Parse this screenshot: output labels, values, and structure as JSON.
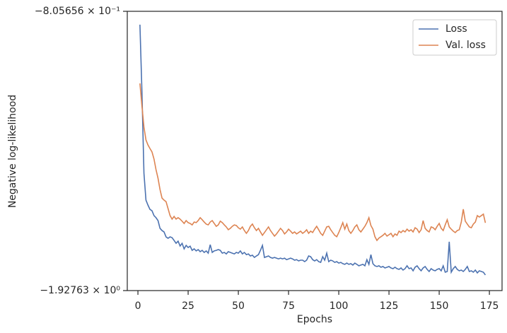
{
  "chart_data": {
    "type": "line",
    "xlabel": "Epochs",
    "ylabel": "Negative log-likelihood",
    "yscale": "log",
    "xlim": [
      -5.3,
      181.3
    ],
    "xticks": [
      0,
      25,
      50,
      75,
      100,
      125,
      150,
      175
    ],
    "ylim": [
      -1.92763,
      -0.805656
    ],
    "yticks": [
      {
        "value": -1.92763,
        "label": "−1.92763 × 10⁰"
      },
      {
        "value": -0.805656,
        "label": "−8.05656 × 10⁻¹"
      }
    ],
    "legend": "upper right",
    "x": [
      1,
      2,
      3,
      4,
      5,
      6,
      7,
      8,
      9,
      10,
      11,
      12,
      13,
      14,
      15,
      16,
      17,
      18,
      19,
      20,
      21,
      22,
      23,
      24,
      25,
      26,
      27,
      28,
      29,
      30,
      31,
      32,
      33,
      34,
      35,
      36,
      37,
      38,
      39,
      40,
      41,
      42,
      43,
      44,
      45,
      46,
      47,
      48,
      49,
      50,
      51,
      52,
      53,
      54,
      55,
      56,
      57,
      58,
      59,
      60,
      61,
      62,
      63,
      64,
      65,
      66,
      67,
      68,
      69,
      70,
      71,
      72,
      73,
      74,
      75,
      76,
      77,
      78,
      79,
      80,
      81,
      82,
      83,
      84,
      85,
      86,
      87,
      88,
      89,
      90,
      91,
      92,
      93,
      94,
      95,
      96,
      97,
      98,
      99,
      100,
      101,
      102,
      103,
      104,
      105,
      106,
      107,
      108,
      109,
      110,
      111,
      112,
      113,
      114,
      115,
      116,
      117,
      118,
      119,
      120,
      121,
      122,
      123,
      124,
      125,
      126,
      127,
      128,
      129,
      130,
      131,
      132,
      133,
      134,
      135,
      136,
      137,
      138,
      139,
      140,
      141,
      142,
      143,
      144,
      145,
      146,
      147,
      148,
      149,
      150,
      151,
      152,
      153,
      154,
      155,
      156,
      157,
      158,
      159,
      160,
      161,
      162,
      163,
      164,
      165,
      166,
      167,
      168,
      169,
      170,
      171,
      172,
      173
    ],
    "series": [
      {
        "name": "Loss",
        "color": "#4c72b0",
        "values": [
          -0.84,
          -1.036,
          -1.336,
          -1.453,
          -1.476,
          -1.496,
          -1.502,
          -1.525,
          -1.535,
          -1.549,
          -1.587,
          -1.598,
          -1.605,
          -1.63,
          -1.637,
          -1.63,
          -1.634,
          -1.648,
          -1.663,
          -1.652,
          -1.677,
          -1.663,
          -1.692,
          -1.674,
          -1.685,
          -1.678,
          -1.7,
          -1.692,
          -1.703,
          -1.696,
          -1.707,
          -1.7,
          -1.711,
          -1.703,
          -1.715,
          -1.67,
          -1.711,
          -1.703,
          -1.7,
          -1.696,
          -1.7,
          -1.715,
          -1.711,
          -1.719,
          -1.707,
          -1.711,
          -1.715,
          -1.719,
          -1.711,
          -1.715,
          -1.703,
          -1.719,
          -1.711,
          -1.723,
          -1.719,
          -1.73,
          -1.726,
          -1.738,
          -1.73,
          -1.723,
          -1.7,
          -1.674,
          -1.738,
          -1.734,
          -1.73,
          -1.738,
          -1.742,
          -1.738,
          -1.742,
          -1.746,
          -1.742,
          -1.746,
          -1.742,
          -1.75,
          -1.746,
          -1.742,
          -1.746,
          -1.753,
          -1.75,
          -1.757,
          -1.753,
          -1.753,
          -1.761,
          -1.753,
          -1.73,
          -1.734,
          -1.75,
          -1.757,
          -1.75,
          -1.761,
          -1.765,
          -1.734,
          -1.753,
          -1.715,
          -1.761,
          -1.753,
          -1.757,
          -1.765,
          -1.761,
          -1.769,
          -1.765,
          -1.772,
          -1.776,
          -1.769,
          -1.776,
          -1.772,
          -1.78,
          -1.769,
          -1.776,
          -1.784,
          -1.78,
          -1.776,
          -1.784,
          -1.75,
          -1.776,
          -1.723,
          -1.772,
          -1.784,
          -1.788,
          -1.784,
          -1.792,
          -1.788,
          -1.796,
          -1.792,
          -1.788,
          -1.796,
          -1.8,
          -1.792,
          -1.8,
          -1.804,
          -1.796,
          -1.808,
          -1.8,
          -1.784,
          -1.8,
          -1.796,
          -1.812,
          -1.792,
          -1.784,
          -1.8,
          -1.812,
          -1.796,
          -1.788,
          -1.804,
          -1.816,
          -1.8,
          -1.808,
          -1.812,
          -1.804,
          -1.8,
          -1.812,
          -1.784,
          -1.82,
          -1.816,
          -1.655,
          -1.82,
          -1.8,
          -1.788,
          -1.804,
          -1.812,
          -1.808,
          -1.816,
          -1.804,
          -1.788,
          -1.816,
          -1.812,
          -1.82,
          -1.808,
          -1.824,
          -1.812,
          -1.816,
          -1.82,
          -1.836
        ]
      },
      {
        "name": "Val. loss",
        "color": "#dd8452",
        "values": [
          -1.009,
          -1.083,
          -1.157,
          -1.204,
          -1.223,
          -1.237,
          -1.25,
          -1.278,
          -1.321,
          -1.357,
          -1.406,
          -1.444,
          -1.453,
          -1.46,
          -1.492,
          -1.525,
          -1.542,
          -1.529,
          -1.542,
          -1.535,
          -1.542,
          -1.552,
          -1.563,
          -1.549,
          -1.559,
          -1.563,
          -1.57,
          -1.556,
          -1.559,
          -1.549,
          -1.535,
          -1.545,
          -1.556,
          -1.566,
          -1.57,
          -1.556,
          -1.549,
          -1.563,
          -1.577,
          -1.57,
          -1.552,
          -1.559,
          -1.57,
          -1.58,
          -1.594,
          -1.587,
          -1.577,
          -1.57,
          -1.573,
          -1.584,
          -1.591,
          -1.58,
          -1.598,
          -1.612,
          -1.598,
          -1.577,
          -1.566,
          -1.584,
          -1.598,
          -1.587,
          -1.605,
          -1.622,
          -1.608,
          -1.594,
          -1.58,
          -1.598,
          -1.612,
          -1.626,
          -1.615,
          -1.601,
          -1.587,
          -1.598,
          -1.615,
          -1.605,
          -1.591,
          -1.601,
          -1.612,
          -1.605,
          -1.615,
          -1.608,
          -1.601,
          -1.612,
          -1.605,
          -1.594,
          -1.612,
          -1.601,
          -1.608,
          -1.591,
          -1.577,
          -1.594,
          -1.612,
          -1.622,
          -1.601,
          -1.58,
          -1.577,
          -1.594,
          -1.608,
          -1.622,
          -1.629,
          -1.608,
          -1.584,
          -1.559,
          -1.591,
          -1.566,
          -1.598,
          -1.612,
          -1.598,
          -1.58,
          -1.57,
          -1.594,
          -1.605,
          -1.591,
          -1.577,
          -1.559,
          -1.535,
          -1.573,
          -1.591,
          -1.629,
          -1.648,
          -1.636,
          -1.629,
          -1.622,
          -1.612,
          -1.626,
          -1.619,
          -1.612,
          -1.629,
          -1.615,
          -1.622,
          -1.601,
          -1.608,
          -1.598,
          -1.605,
          -1.591,
          -1.601,
          -1.594,
          -1.605,
          -1.584,
          -1.591,
          -1.608,
          -1.594,
          -1.549,
          -1.587,
          -1.598,
          -1.605,
          -1.58,
          -1.584,
          -1.594,
          -1.577,
          -1.563,
          -1.587,
          -1.598,
          -1.57,
          -1.545,
          -1.58,
          -1.591,
          -1.601,
          -1.608,
          -1.598,
          -1.594,
          -1.556,
          -1.495,
          -1.552,
          -1.566,
          -1.58,
          -1.584,
          -1.566,
          -1.556,
          -1.525,
          -1.532,
          -1.525,
          -1.518,
          -1.56
        ]
      }
    ]
  }
}
